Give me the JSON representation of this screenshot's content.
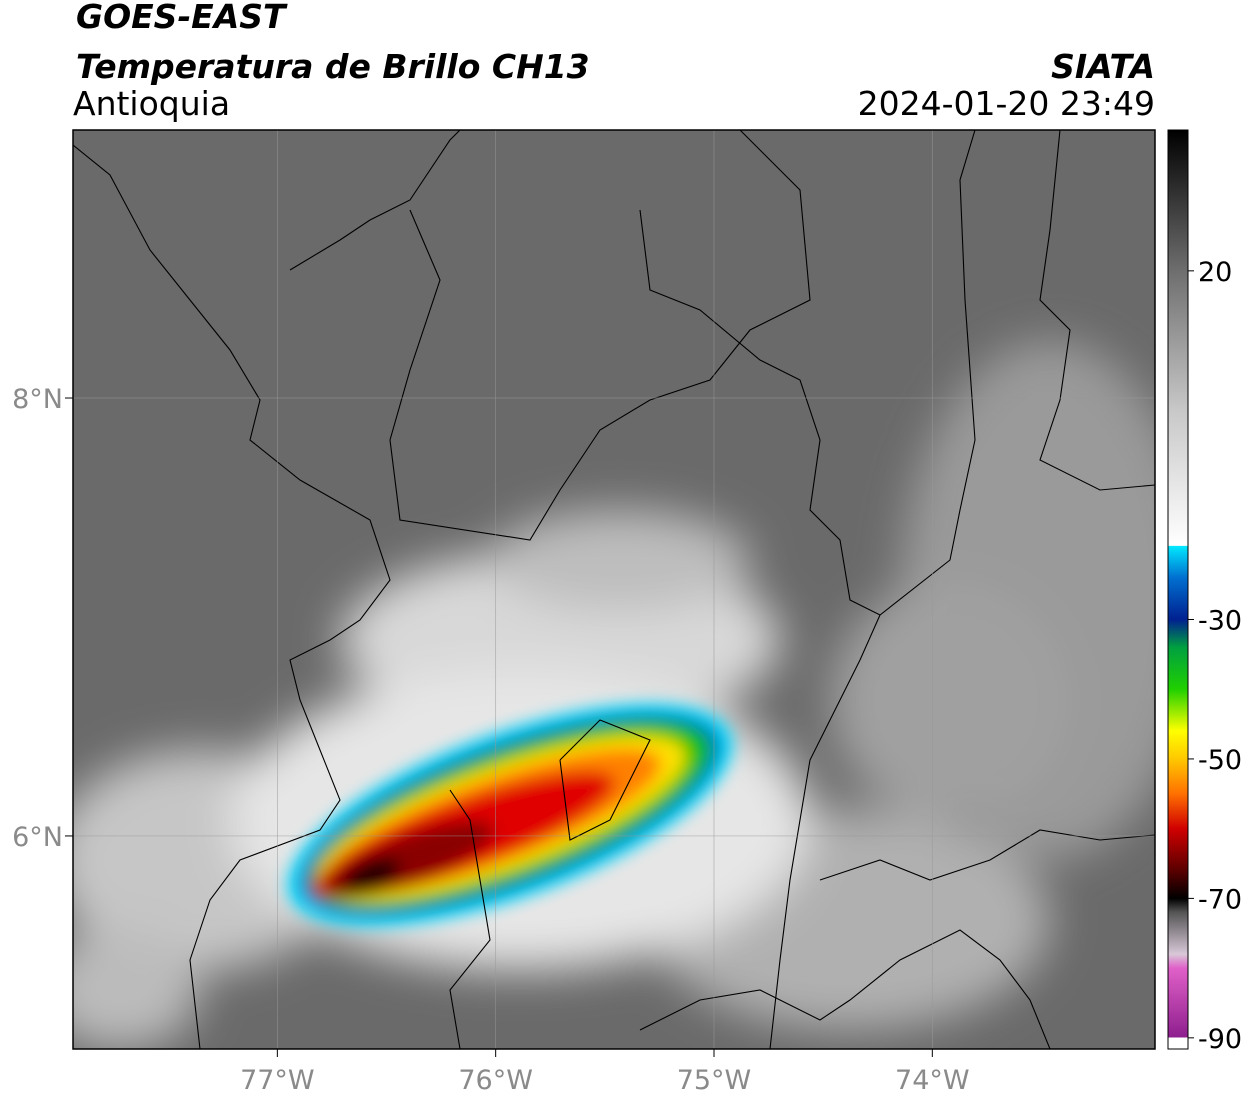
{
  "header": {
    "title": "GOES-EAST",
    "subtitle": "Temperatura de Brillo CH13",
    "region": "Antioquia",
    "source": "SIATA",
    "datetime": "2024-01-20 23:49"
  },
  "map": {
    "lonlim": [
      -77.936,
      -72.98
    ],
    "latlim": [
      5.027,
      9.224
    ],
    "xticks": [
      {
        "value": -77,
        "label": "77°W"
      },
      {
        "value": -76,
        "label": "76°W"
      },
      {
        "value": -75,
        "label": "75°W"
      },
      {
        "value": -74,
        "label": "74°W"
      }
    ],
    "yticks": [
      {
        "value": 8,
        "label": "8°N"
      },
      {
        "value": 6,
        "label": "6°N"
      }
    ],
    "grid": true
  },
  "colorbar": {
    "lim": [
      -91.6,
      40.2
    ],
    "ticks": [
      20,
      -30,
      -50,
      -70,
      -90
    ],
    "colormap": [
      {
        "value": -91.6,
        "color": "#ffffff"
      },
      {
        "value": -90,
        "color": "#ffffff"
      },
      {
        "value": -89.9,
        "color": "#8e1f8e"
      },
      {
        "value": -80,
        "color": "#e060c8"
      },
      {
        "value": -78,
        "color": "#d8c8d8"
      },
      {
        "value": -72,
        "color": "#555555"
      },
      {
        "value": -70,
        "color": "#000000"
      },
      {
        "value": -66,
        "color": "#5a0000"
      },
      {
        "value": -60,
        "color": "#d00000"
      },
      {
        "value": -55,
        "color": "#ff7000"
      },
      {
        "value": -50,
        "color": "#ffc800"
      },
      {
        "value": -46,
        "color": "#ffff00"
      },
      {
        "value": -40,
        "color": "#20d000"
      },
      {
        "value": -34,
        "color": "#00a040"
      },
      {
        "value": -30,
        "color": "#002090"
      },
      {
        "value": -24,
        "color": "#0070d0"
      },
      {
        "value": -19.5,
        "color": "#00e8ff"
      },
      {
        "value": -19.4,
        "color": "#ffffff"
      },
      {
        "value": 0,
        "color": "#c8c8c8"
      },
      {
        "value": 20,
        "color": "#6e6e6e"
      },
      {
        "value": 40.2,
        "color": "#000000"
      }
    ]
  }
}
